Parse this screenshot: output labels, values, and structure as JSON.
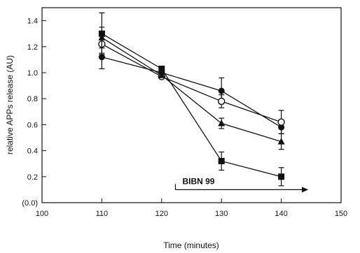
{
  "chart_data": {
    "type": "line",
    "title": "",
    "xlabel": "Time (minutes)",
    "ylabel": "relative APPs release (AU)",
    "xlim": [
      100,
      150
    ],
    "ylim": [
      0,
      1.5
    ],
    "xticks": [
      100,
      110,
      120,
      130,
      140,
      150
    ],
    "xtick_labels": [
      "100",
      "110",
      "120",
      "130",
      "140",
      "150"
    ],
    "yticks": [
      0.0,
      0.2,
      0.4,
      0.6,
      0.8,
      1.0,
      1.2,
      1.4
    ],
    "ytick_labels": [
      "(0.0)",
      "0.2",
      "0.4",
      "0.6",
      "0.8",
      "1.0",
      "1.2",
      "1.4"
    ],
    "grid": false,
    "x": [
      110,
      120,
      130,
      140
    ],
    "series": [
      {
        "marker": "filled-circle",
        "values": [
          1.12,
          1.0,
          0.86,
          0.58
        ],
        "errors": [
          0.09,
          0.0,
          0.1,
          0.05
        ]
      },
      {
        "marker": "open-circle",
        "values": [
          1.22,
          0.97,
          0.78,
          0.62
        ],
        "errors": [
          0.07,
          0.0,
          0.05,
          0.09
        ]
      },
      {
        "marker": "filled-triangle",
        "values": [
          1.27,
          0.98,
          0.61,
          0.47
        ],
        "errors": [
          0.08,
          0.0,
          0.04,
          0.06
        ]
      },
      {
        "marker": "filled-square",
        "values": [
          1.3,
          1.03,
          0.32,
          0.2
        ],
        "errors": [
          0.16,
          0.0,
          0.07,
          0.07
        ]
      }
    ],
    "annotations": [
      {
        "text": "BIBN 99",
        "arrow_from_x": 122.3,
        "arrow_to_x": 144.5,
        "y": 0.1
      }
    ]
  }
}
